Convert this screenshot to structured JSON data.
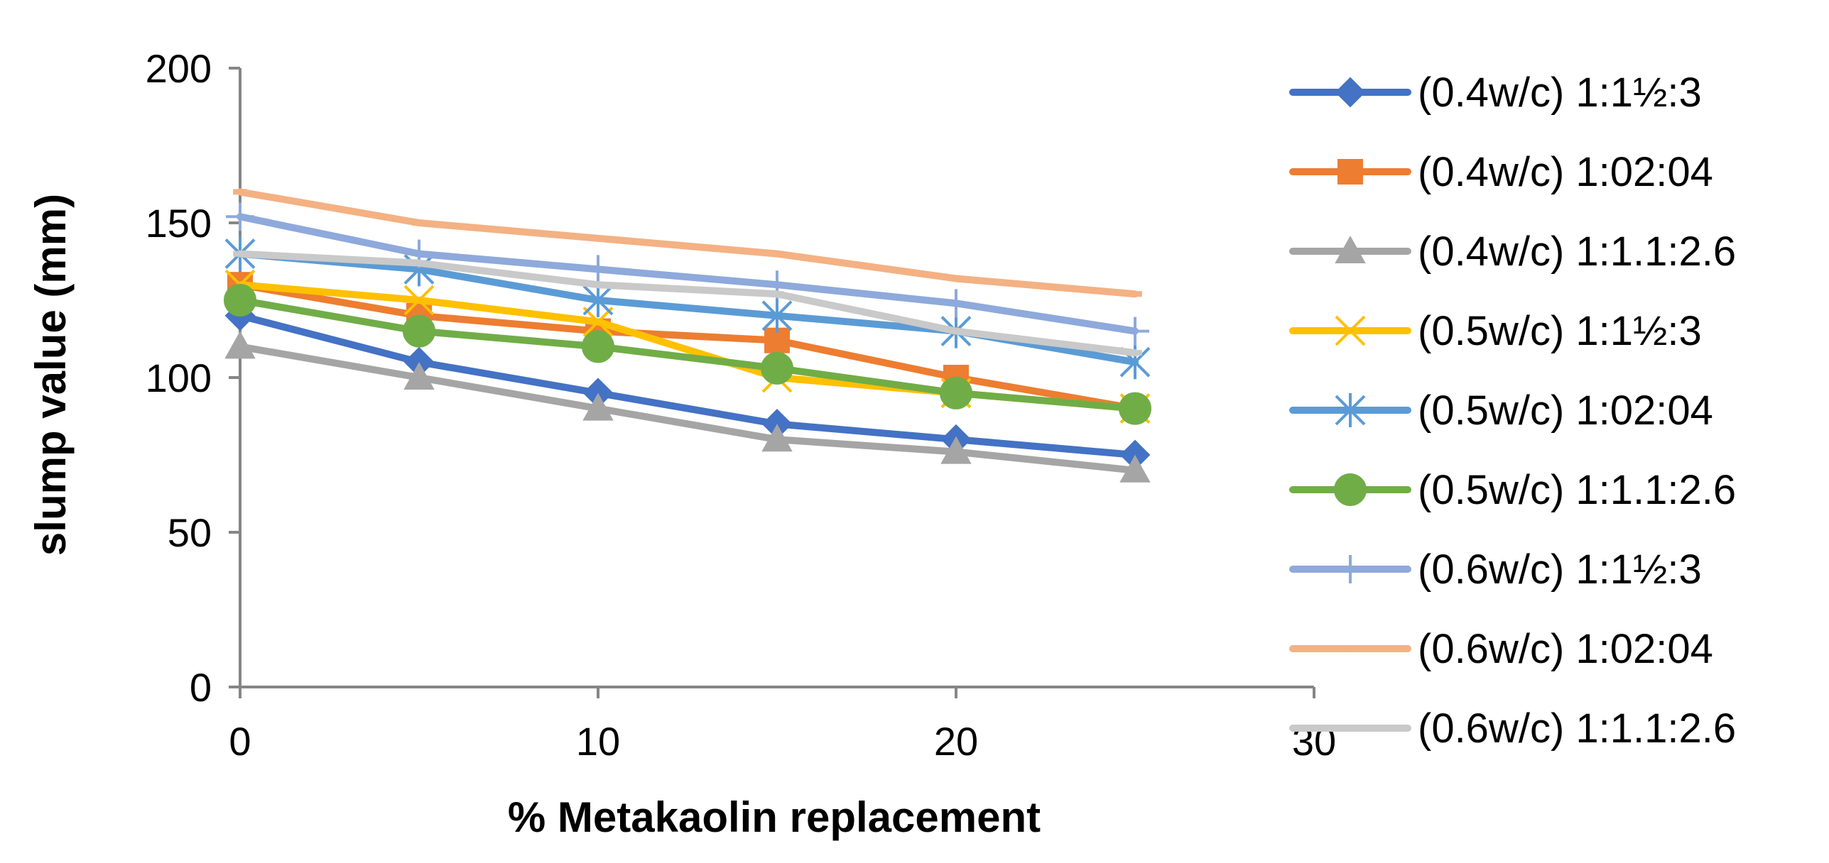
{
  "chart_data": {
    "type": "line",
    "title": "",
    "xlabel": "% Metakaolin replacement",
    "ylabel": "slump value (mm)",
    "xlim": [
      0,
      30
    ],
    "ylim": [
      0,
      200
    ],
    "x_ticks": [
      "0",
      "10",
      "20",
      "30"
    ],
    "y_ticks": [
      "0",
      "50",
      "100",
      "150",
      "200"
    ],
    "grid": false,
    "legend_position": "right",
    "x": [
      0,
      5,
      10,
      15,
      20,
      25
    ],
    "series": [
      {
        "name": "(0.4w/c) 1:1½:3",
        "color": "#4472C4",
        "marker": "diamond",
        "values": [
          120,
          105,
          95,
          85,
          80,
          75
        ]
      },
      {
        "name": "(0.4w/c) 1:02:04",
        "color": "#ED7D31",
        "marker": "square",
        "values": [
          130,
          120,
          115,
          112,
          100,
          90
        ]
      },
      {
        "name": "(0.4w/c) 1:1.1:2.6",
        "color": "#A5A5A5",
        "marker": "triangle",
        "values": [
          110,
          100,
          90,
          80,
          76,
          70
        ]
      },
      {
        "name": "(0.5w/c) 1:1½:3",
        "color": "#FFC000",
        "marker": "x",
        "values": [
          130,
          125,
          118,
          100,
          95,
          90
        ]
      },
      {
        "name": "(0.5w/c) 1:02:04",
        "color": "#5B9BD5",
        "marker": "star",
        "values": [
          140,
          135,
          125,
          120,
          115,
          105
        ]
      },
      {
        "name": "(0.5w/c) 1:1.1:2.6",
        "color": "#70AD47",
        "marker": "circle",
        "values": [
          125,
          115,
          110,
          103,
          95,
          90
        ]
      },
      {
        "name": "(0.6w/c) 1:1½:3",
        "color": "#8EA9DB",
        "marker": "plus",
        "values": [
          152,
          140,
          135,
          130,
          124,
          115
        ]
      },
      {
        "name": "(0.6w/c) 1:02:04",
        "color": "#F4B183",
        "marker": "dash",
        "values": [
          160,
          150,
          145,
          140,
          132,
          127
        ]
      },
      {
        "name": "(0.6w/c) 1:1.1:2.6",
        "color": "#C9C9C9",
        "marker": "dash",
        "values": [
          140,
          137,
          130,
          127,
          115,
          108
        ]
      }
    ]
  }
}
